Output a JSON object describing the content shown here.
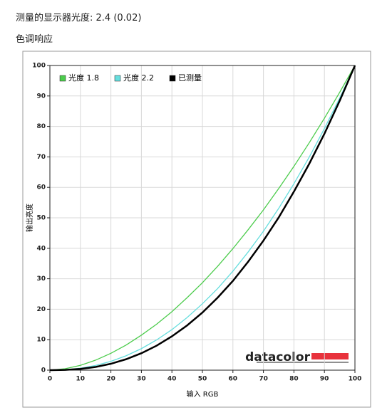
{
  "header": {
    "title": "测量的显示器光度: 2.4 (0.02)",
    "subtitle": "色调响应"
  },
  "logo": "datacolor",
  "chart_data": {
    "type": "line",
    "x_label": "输入 RGB",
    "y_label": "输出亮度",
    "x": [
      0,
      5,
      10,
      15,
      20,
      25,
      30,
      35,
      40,
      45,
      50,
      55,
      60,
      65,
      70,
      75,
      80,
      85,
      90,
      95,
      100
    ],
    "series": [
      {
        "name": "光度 1.8",
        "color": "#4ccc4c",
        "values": [
          0,
          0.46,
          1.58,
          3.29,
          5.53,
          8.25,
          11.5,
          15.1,
          19.2,
          23.8,
          28.7,
          34.1,
          39.9,
          46.1,
          52.6,
          59.6,
          66.9,
          74.6,
          82.7,
          91.2,
          100
        ]
      },
      {
        "name": "光度 2.2",
        "color": "#66dede",
        "values": [
          0,
          0.14,
          0.63,
          1.54,
          2.9,
          4.74,
          7.07,
          9.93,
          13.3,
          17.3,
          21.8,
          26.8,
          32.5,
          38.8,
          45.6,
          53.1,
          61.2,
          69.9,
          79.3,
          89.3,
          100
        ]
      },
      {
        "name": "已测量",
        "color": "#000000",
        "values": [
          0,
          0.08,
          0.4,
          1.05,
          2.1,
          3.59,
          5.56,
          8.04,
          11.1,
          14.7,
          18.9,
          23.8,
          29.3,
          35.6,
          42.5,
          50.1,
          58.6,
          67.7,
          77.6,
          88.4,
          100
        ]
      }
    ],
    "xlim": [
      0,
      100
    ],
    "ylim": [
      0,
      100
    ],
    "xticks": [
      0,
      10,
      20,
      30,
      40,
      50,
      60,
      70,
      80,
      90,
      100
    ],
    "yticks": [
      0,
      10,
      20,
      30,
      40,
      50,
      60,
      70,
      80,
      90,
      100
    ],
    "grid": true,
    "legend": "top-left"
  }
}
